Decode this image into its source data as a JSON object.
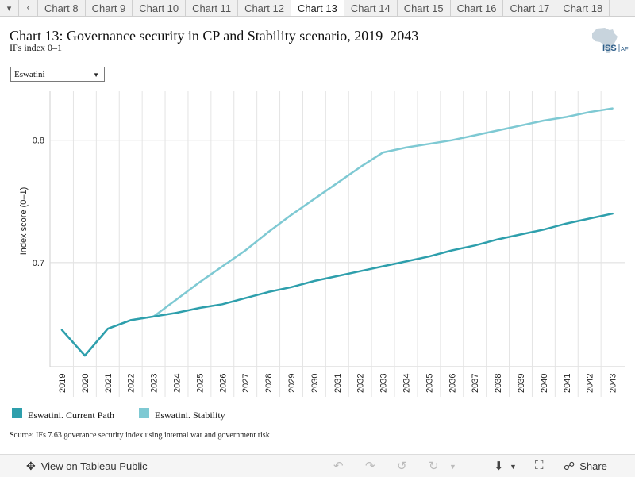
{
  "tabs": {
    "prev_icon": "chevron-left-icon",
    "items": [
      "Chart 8",
      "Chart 9",
      "Chart 10",
      "Chart 11",
      "Chart 12",
      "Chart 13",
      "Chart 14",
      "Chart 15",
      "Chart 16",
      "Chart 17",
      "Chart 18"
    ],
    "active_index": 5
  },
  "header": {
    "title": "Chart 13: Governance security in CP and Stability scenario, 2019–2043",
    "subtitle": "IFs index 0–1",
    "logo_text": "ISS",
    "logo_suffix": "AFI"
  },
  "filter": {
    "selected": "Eswatini"
  },
  "chart_data": {
    "type": "line",
    "title": "Chart 13: Governance security in CP and Stability scenario, 2019–2043",
    "ylabel": "Index score (0–1)",
    "xlabel": "",
    "ylim": [
      0.615,
      0.84
    ],
    "yticks": [
      0.7,
      0.8
    ],
    "ytick_labels": [
      "0.7",
      "0.8"
    ],
    "x": [
      2019,
      2020,
      2021,
      2022,
      2023,
      2024,
      2025,
      2026,
      2027,
      2028,
      2029,
      2030,
      2031,
      2032,
      2033,
      2034,
      2035,
      2036,
      2037,
      2038,
      2039,
      2040,
      2041,
      2042,
      2043
    ],
    "grid": "horizontal",
    "legend_position": "bottom-left",
    "series": [
      {
        "name": "Eswatini. Current Path",
        "color": "#2e9fac",
        "values": [
          0.645,
          0.624,
          0.646,
          0.653,
          0.656,
          0.659,
          0.663,
          0.666,
          0.671,
          0.676,
          0.68,
          0.685,
          0.689,
          0.693,
          0.697,
          0.701,
          0.705,
          0.71,
          0.714,
          0.719,
          0.723,
          0.727,
          0.732,
          0.736,
          0.74
        ]
      },
      {
        "name": "Eswatini. Stability",
        "color": "#7ec9d3",
        "values": [
          0.645,
          0.624,
          0.646,
          0.653,
          0.656,
          0.67,
          0.684,
          0.697,
          0.71,
          0.725,
          0.739,
          0.752,
          0.765,
          0.778,
          0.79,
          0.794,
          0.797,
          0.8,
          0.804,
          0.808,
          0.812,
          0.816,
          0.819,
          0.823,
          0.826
        ]
      }
    ]
  },
  "legend": {
    "items": [
      {
        "label": "Eswatini. Current Path",
        "color": "#2e9fac"
      },
      {
        "label": "Eswatini. Stability",
        "color": "#7ec9d3"
      }
    ]
  },
  "source": "Source: IFs 7.63 goverance security index using internal war and government risk",
  "footer": {
    "view_label": "View on Tableau Public",
    "share_label": "Share"
  }
}
